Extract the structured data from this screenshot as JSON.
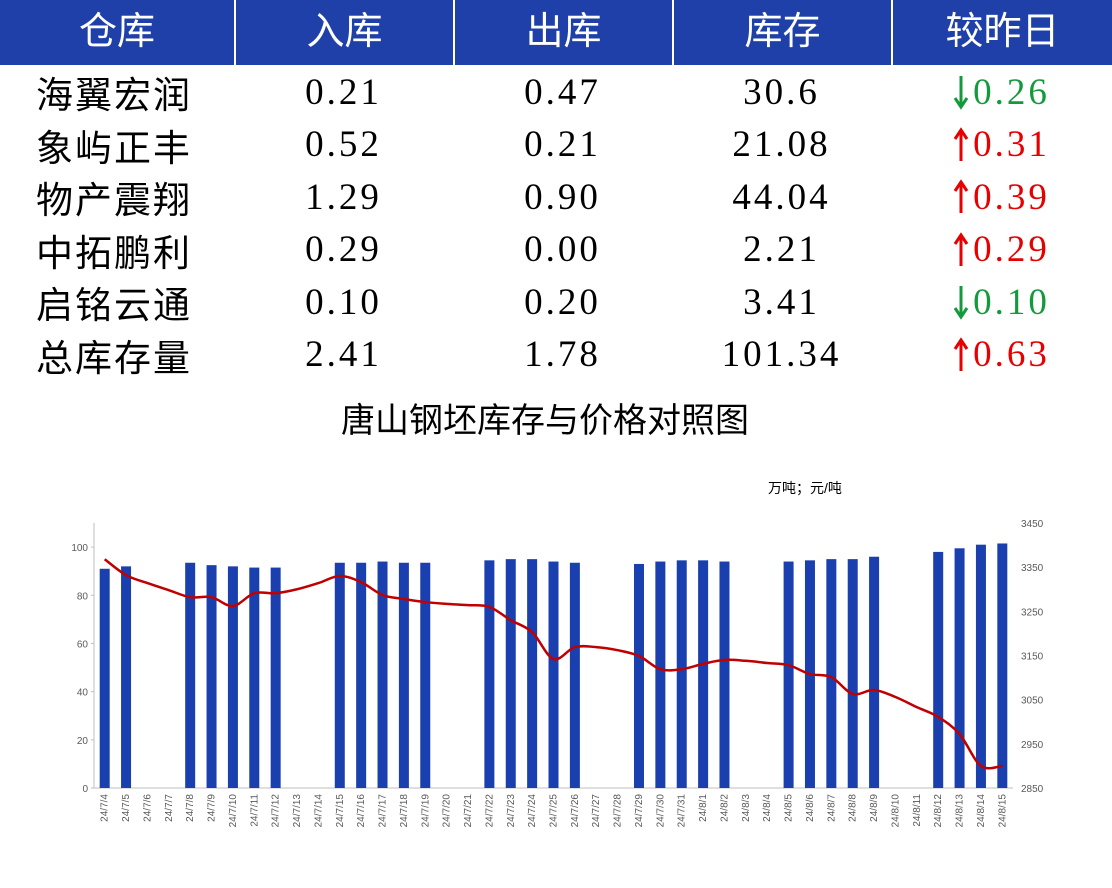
{
  "table": {
    "header": [
      "仓库",
      "入库",
      "出库",
      "库存",
      "较昨日"
    ],
    "rows": [
      [
        "海翼宏润",
        "0.21",
        "0.47",
        "30.6",
        "0.26"
      ],
      [
        "象屿正丰",
        "0.52",
        "0.21",
        "21.08",
        "0.31"
      ],
      [
        "物产震翔",
        "1.29",
        "0.90",
        "44.04",
        "0.39"
      ],
      [
        "中拓鹏利",
        "0.29",
        "0.00",
        "2.21",
        "0.29"
      ],
      [
        "启铭云通",
        "0.10",
        "0.20",
        "3.41",
        "0.10"
      ],
      [
        "总库存量",
        "2.41",
        "1.78",
        "101.34",
        "0.63"
      ]
    ],
    "trend": [
      "down",
      "up",
      "up",
      "up",
      "down",
      "up"
    ],
    "up_color": "#e60000",
    "down_color": "#149a3c"
  },
  "chart_data": {
    "type": "bar_line",
    "title": "唐山钢坯库存与价格对照图",
    "unit_label": "万吨；元/吨",
    "categories": [
      "24/7/4",
      "24/7/5",
      "24/7/6",
      "24/7/7",
      "24/7/8",
      "24/7/9",
      "24/7/10",
      "24/7/11",
      "24/7/12",
      "24/7/13",
      "24/7/14",
      "24/7/15",
      "24/7/16",
      "24/7/17",
      "24/7/18",
      "24/7/19",
      "24/7/20",
      "24/7/21",
      "24/7/22",
      "24/7/23",
      "24/7/24",
      "24/7/25",
      "24/7/26",
      "24/7/27",
      "24/7/28",
      "24/7/29",
      "24/7/30",
      "24/7/31",
      "24/8/1",
      "24/8/2",
      "24/8/3",
      "24/8/4",
      "24/8/5",
      "24/8/6",
      "24/8/7",
      "24/8/8",
      "24/8/9",
      "24/8/10",
      "24/8/11",
      "24/8/12",
      "24/8/13",
      "24/8/14",
      "24/8/15"
    ],
    "series": [
      {
        "type": "bar",
        "color": "#1a3fae",
        "values": [
          91,
          92,
          null,
          null,
          93.5,
          92.5,
          92,
          91.5,
          91.5,
          null,
          null,
          93.5,
          93.5,
          94,
          93.5,
          93.5,
          null,
          null,
          94.5,
          95,
          95,
          94,
          93.5,
          null,
          null,
          93,
          94,
          94.5,
          94.5,
          94,
          null,
          null,
          94,
          94.5,
          95,
          95,
          96,
          null,
          null,
          98,
          99.5,
          101,
          101.5
        ]
      },
      {
        "type": "line",
        "color": "#c00000",
        "axis": "y2",
        "values": [
          3368,
          3332,
          3314,
          3298,
          3282,
          3282,
          3262,
          3291,
          3291,
          3300,
          3314,
          3330,
          3316,
          3287,
          3278,
          3271,
          3267,
          3264,
          3260,
          3230,
          3203,
          3142,
          3169,
          3169,
          3162,
          3149,
          3119,
          3119,
          3131,
          3140,
          3138,
          3133,
          3128,
          3108,
          3101,
          3063,
          3072,
          3056,
          3033,
          3011,
          2972,
          2900,
          2900
        ]
      }
    ],
    "ylim": [
      0,
      110
    ],
    "yticks": [
      0,
      20,
      40,
      60,
      80,
      100
    ],
    "y2lim": [
      2850,
      3450
    ],
    "y2ticks": [
      2850,
      2950,
      3050,
      3150,
      3250,
      3350,
      3450
    ]
  }
}
